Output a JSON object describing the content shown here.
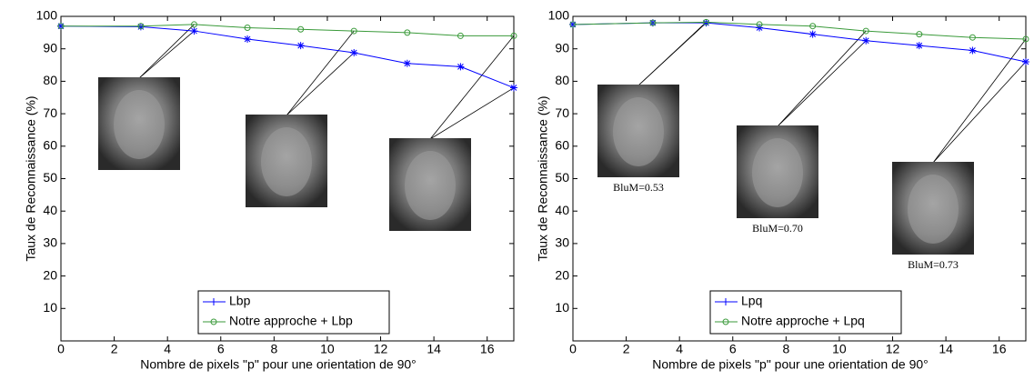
{
  "chart_data": [
    {
      "type": "line",
      "xlabel": "Nombre de pixels \"p\" pour une orientation de 90°",
      "ylabel": "Taux de Reconnaissance (%)",
      "x": [
        0,
        3,
        5,
        7,
        9,
        11,
        13,
        15,
        17
      ],
      "series": [
        {
          "name": "Lbp",
          "color": "#0000ff",
          "marker": "star",
          "values": [
            97,
            96.8,
            95.5,
            93,
            91,
            88.8,
            85.5,
            84.5,
            78
          ]
        },
        {
          "name": "Notre approche + Lbp",
          "color": "#3a9a3a",
          "marker": "circle",
          "values": [
            97,
            97,
            97.5,
            96.5,
            96,
            95.5,
            95,
            94,
            94
          ]
        }
      ],
      "xlim": [
        0,
        17
      ],
      "ylim": [
        0,
        100
      ],
      "xticks": [
        0,
        2,
        4,
        6,
        8,
        10,
        12,
        14,
        16
      ],
      "yticks": [
        10,
        20,
        30,
        40,
        50,
        60,
        70,
        80,
        90,
        100
      ],
      "legend": "bottom"
    },
    {
      "type": "line",
      "xlabel": "Nombre de pixels \"p\" pour une orientation de 90°",
      "ylabel": "Taux de Reconnaissance (%)",
      "x": [
        0,
        3,
        5,
        7,
        9,
        11,
        13,
        15,
        17
      ],
      "series": [
        {
          "name": "Lpq",
          "color": "#0000ff",
          "marker": "star",
          "values": [
            97.5,
            98,
            98,
            96.5,
            94.5,
            92.5,
            91,
            89.5,
            86
          ]
        },
        {
          "name": "Notre approche + Lpq",
          "color": "#3a9a3a",
          "marker": "circle",
          "values": [
            97.5,
            98,
            98.2,
            97.5,
            97,
            95.5,
            94.5,
            93.5,
            93
          ]
        }
      ],
      "xlim": [
        0,
        17
      ],
      "ylim": [
        0,
        100
      ],
      "xticks": [
        0,
        2,
        4,
        6,
        8,
        10,
        12,
        14,
        16
      ],
      "yticks": [
        10,
        20,
        30,
        40,
        50,
        60,
        70,
        80,
        90,
        100
      ],
      "annotations": [
        "BluM=0.53",
        "BluM=0.70",
        "BluM=0.73"
      ],
      "legend": "bottom"
    }
  ]
}
